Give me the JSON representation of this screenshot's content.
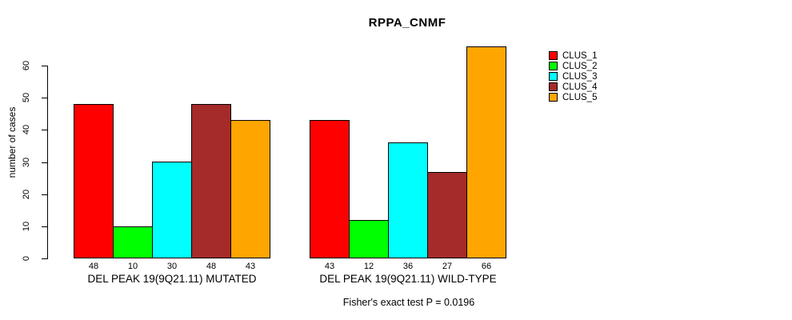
{
  "chart_data": {
    "type": "bar",
    "title": "RPPA_CNMF",
    "ylabel": "number of cases",
    "xlabel": "",
    "ylim": [
      0,
      60
    ],
    "yticks": [
      0,
      10,
      20,
      30,
      40,
      50,
      60
    ],
    "grid": false,
    "legend_position": "right",
    "bar_value_labels": true,
    "categories": [
      "DEL PEAK 19(9Q21.11) MUTATED",
      "DEL PEAK 19(9Q21.11) WILD-TYPE"
    ],
    "series": [
      {
        "name": "CLUS_1",
        "color": "#FF0000",
        "values": [
          48,
          43
        ]
      },
      {
        "name": "CLUS_2",
        "color": "#00FF00",
        "values": [
          10,
          12
        ]
      },
      {
        "name": "CLUS_3",
        "color": "#00FFFF",
        "values": [
          30,
          36
        ]
      },
      {
        "name": "CLUS_4",
        "color": "#A52A2A",
        "values": [
          48,
          27
        ]
      },
      {
        "name": "CLUS_5",
        "color": "#FFA500",
        "values": [
          43,
          66
        ]
      }
    ],
    "annotation": "Fisher's exact test P = 0.0196"
  }
}
